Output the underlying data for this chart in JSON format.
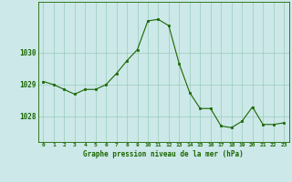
{
  "x": [
    0,
    1,
    2,
    3,
    4,
    5,
    6,
    7,
    8,
    9,
    10,
    11,
    12,
    13,
    14,
    15,
    16,
    17,
    18,
    19,
    20,
    21,
    22,
    23
  ],
  "y": [
    1029.1,
    1029.0,
    1028.85,
    1028.7,
    1028.85,
    1028.85,
    1029.0,
    1029.35,
    1029.75,
    1030.1,
    1031.0,
    1031.05,
    1030.85,
    1029.65,
    1028.75,
    1028.25,
    1028.25,
    1027.7,
    1027.65,
    1027.85,
    1028.3,
    1027.75,
    1027.75,
    1027.8
  ],
  "line_color": "#1a6600",
  "marker_color": "#1a6600",
  "bg_color": "#cce8e8",
  "grid_color": "#99ccbb",
  "axis_label_color": "#1a6600",
  "tick_color": "#1a6600",
  "xlabel": "Graphe pression niveau de la mer (hPa)",
  "yticks": [
    1028,
    1029,
    1030
  ],
  "ylim": [
    1027.2,
    1031.6
  ],
  "xlim": [
    -0.5,
    23.5
  ]
}
